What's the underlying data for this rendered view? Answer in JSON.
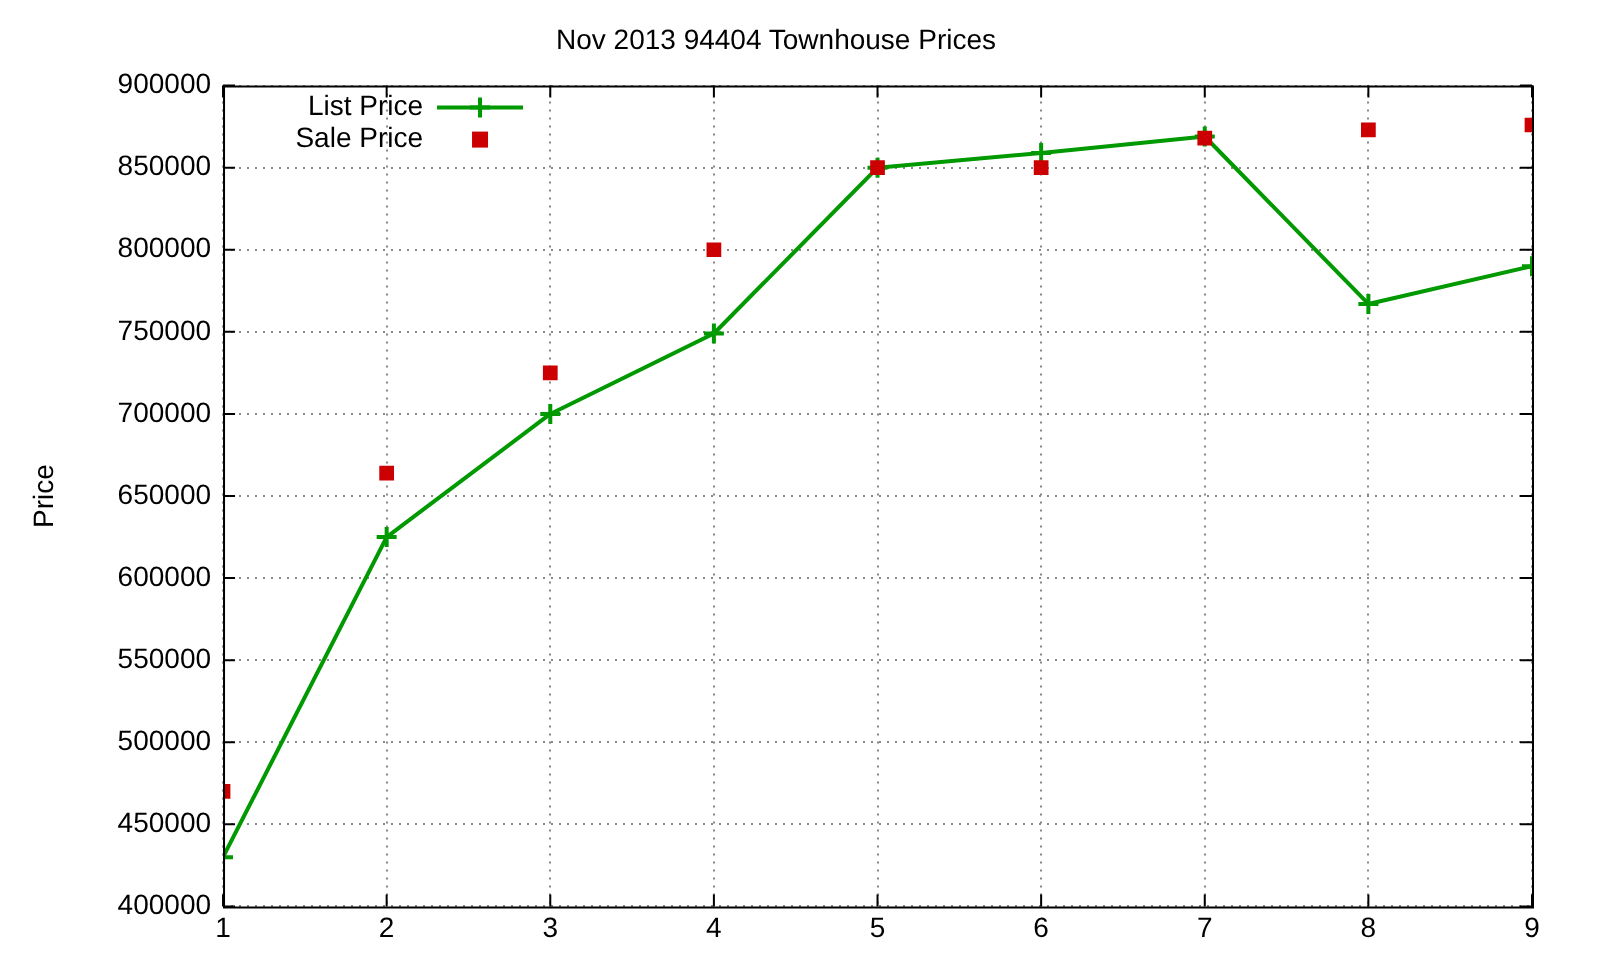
{
  "chart_data": {
    "type": "line",
    "title": "Nov 2013 94404 Townhouse Prices",
    "ylabel": "Price",
    "x": [
      1,
      2,
      3,
      4,
      5,
      6,
      7,
      8,
      9
    ],
    "series": [
      {
        "name": "List Price",
        "color": "#009900",
        "marker": "cross",
        "values": [
          430000,
          625000,
          700000,
          749000,
          850000,
          859000,
          869000,
          767000,
          790000
        ]
      },
      {
        "name": "Sale Price",
        "type": "scatter",
        "color": "#cc0000",
        "marker": "square",
        "values": [
          470000,
          664000,
          725000,
          800000,
          850000,
          850000,
          868000,
          873000,
          876000
        ]
      }
    ],
    "xlim": [
      1,
      9
    ],
    "xticks": [
      1,
      2,
      3,
      4,
      5,
      6,
      7,
      8,
      9
    ],
    "ylim": [
      400000,
      900000
    ],
    "yticks": [
      400000,
      450000,
      500000,
      550000,
      600000,
      650000,
      700000,
      750000,
      800000,
      850000,
      900000
    ],
    "grid": true,
    "legend": "top left"
  }
}
